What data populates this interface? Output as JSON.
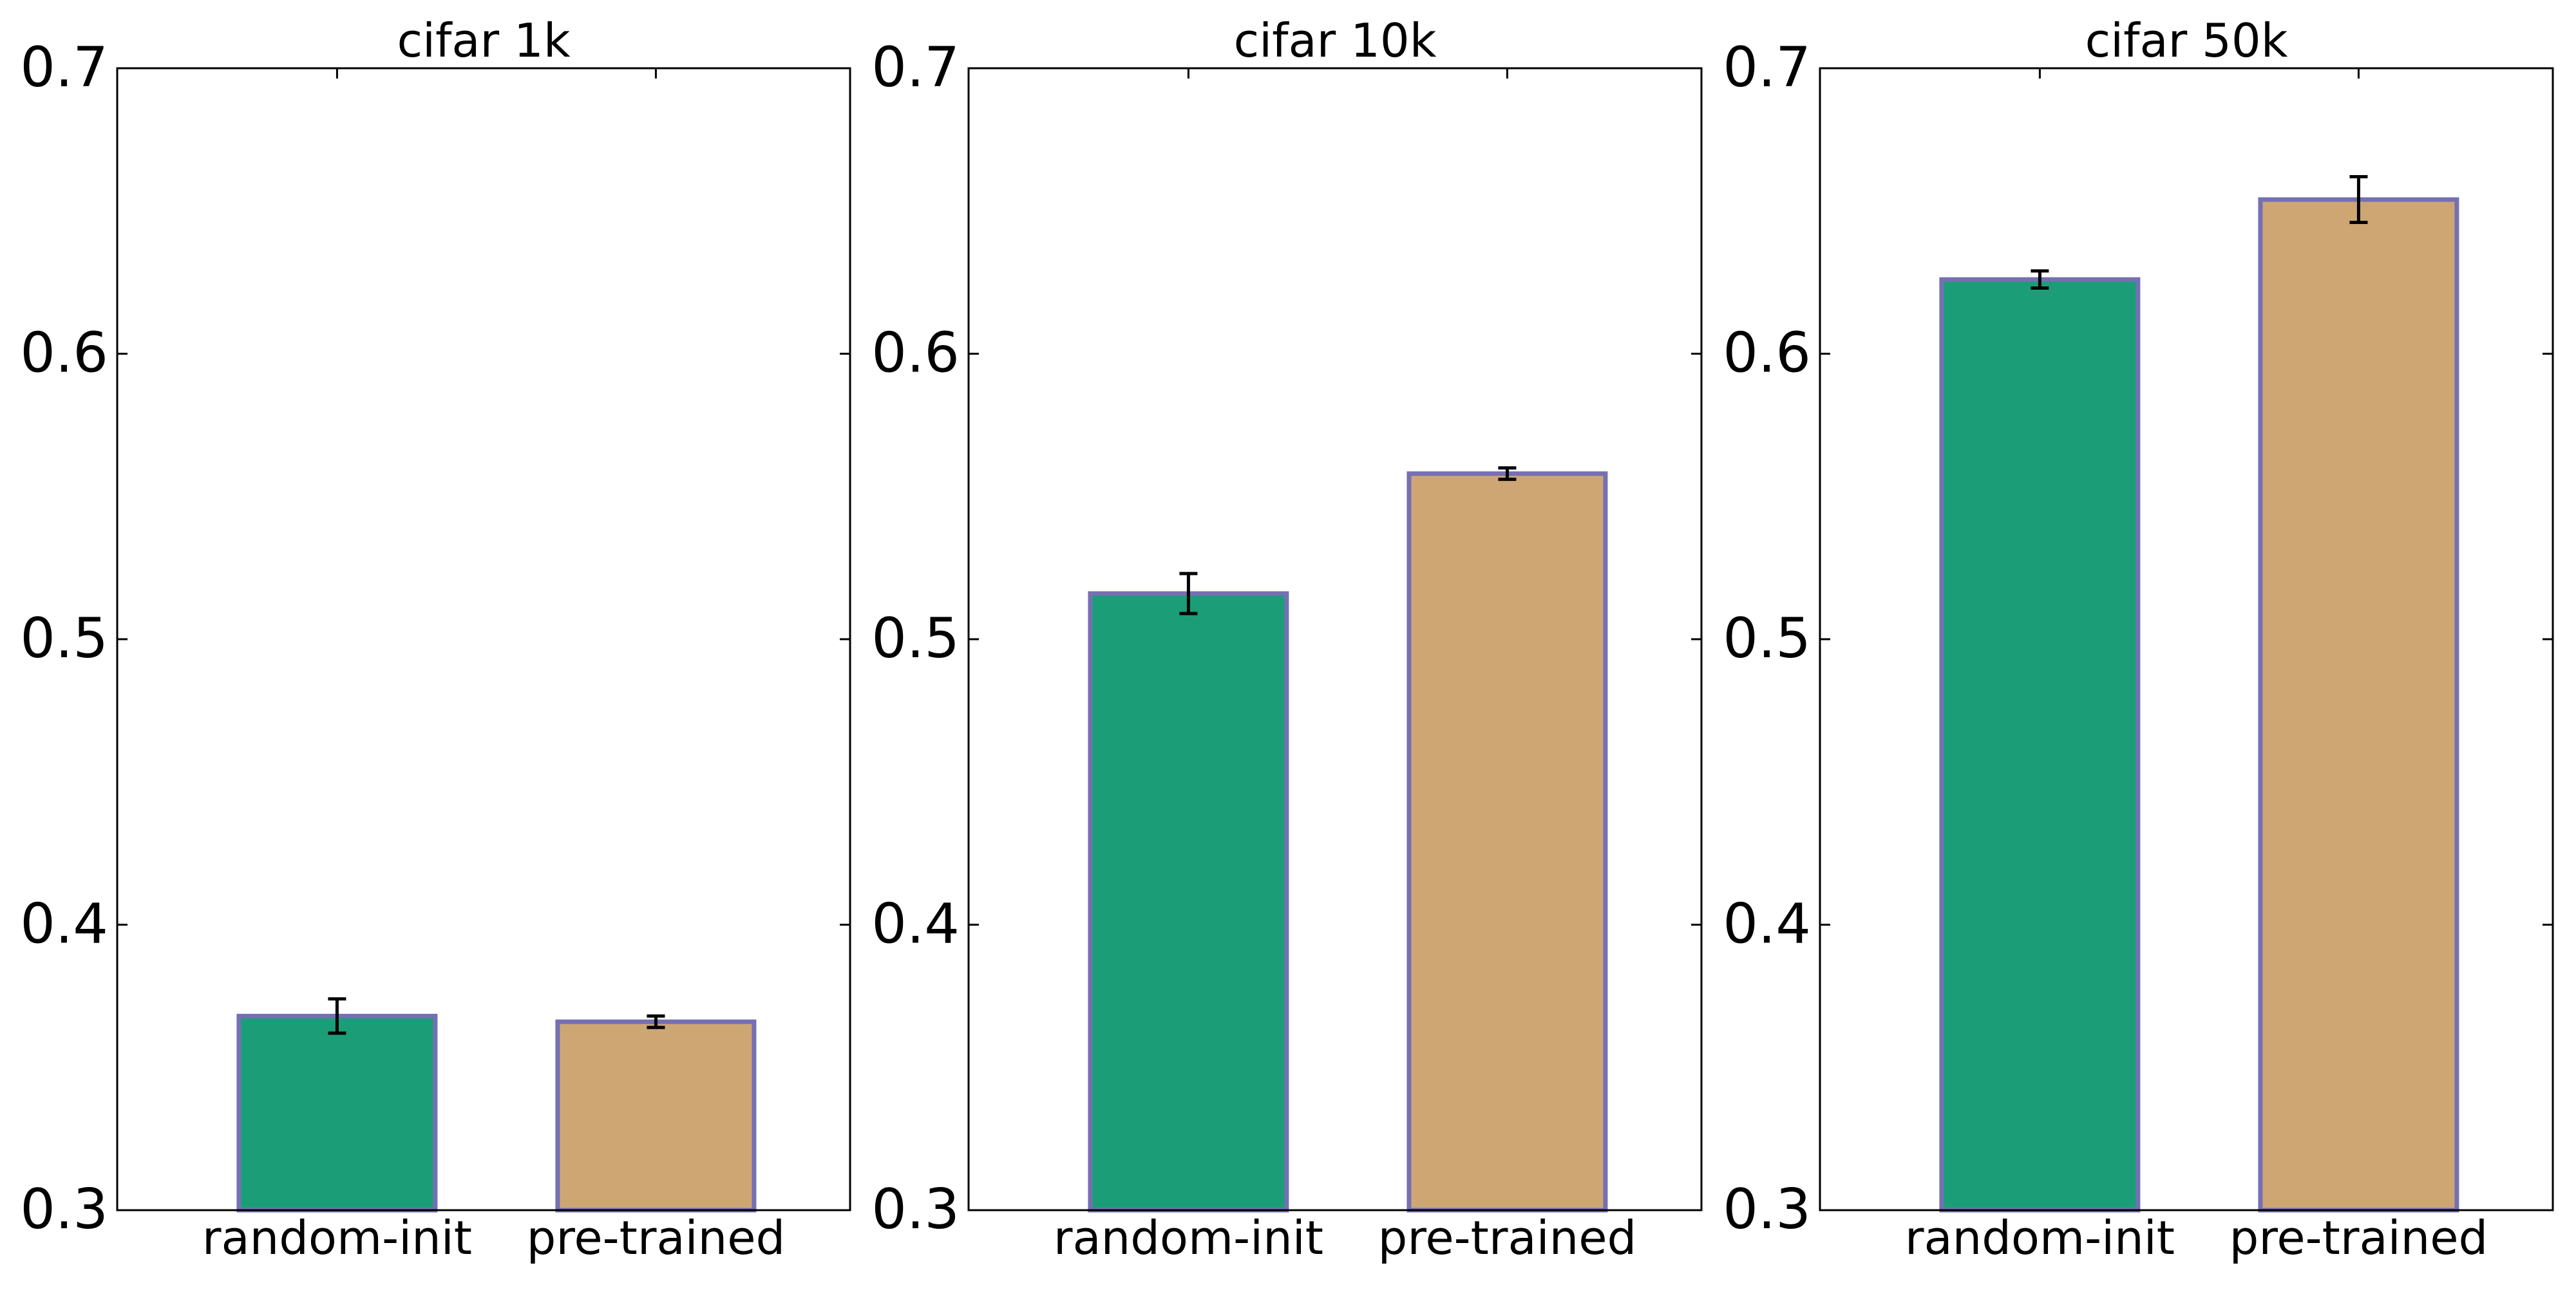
{
  "chart_data": [
    {
      "type": "bar",
      "title": "cifar 1k",
      "categories": [
        "random-init",
        "pre-trained"
      ],
      "values": [
        0.368,
        0.366
      ],
      "errors": [
        0.006,
        0.002
      ],
      "xlabel": "",
      "ylabel": "",
      "ylim": [
        0.3,
        0.7
      ],
      "yticks": [
        0.3,
        0.4,
        0.5,
        0.6,
        0.7
      ],
      "ytick_labels": [
        "0.3",
        "0.4",
        "0.5",
        "0.6",
        "0.7"
      ],
      "grid": false
    },
    {
      "type": "bar",
      "title": "cifar 10k",
      "categories": [
        "random-init",
        "pre-trained"
      ],
      "values": [
        0.516,
        0.558
      ],
      "errors": [
        0.007,
        0.002
      ],
      "xlabel": "",
      "ylabel": "",
      "ylim": [
        0.3,
        0.7
      ],
      "yticks": [
        0.3,
        0.4,
        0.5,
        0.6,
        0.7
      ],
      "ytick_labels": [
        "0.3",
        "0.4",
        "0.5",
        "0.6",
        "0.7"
      ],
      "grid": false
    },
    {
      "type": "bar",
      "title": "cifar 50k",
      "categories": [
        "random-init",
        "pre-trained"
      ],
      "values": [
        0.626,
        0.654
      ],
      "errors": [
        0.003,
        0.008
      ],
      "xlabel": "",
      "ylabel": "",
      "ylim": [
        0.3,
        0.7
      ],
      "yticks": [
        0.3,
        0.4,
        0.5,
        0.6,
        0.7
      ],
      "ytick_labels": [
        "0.3",
        "0.4",
        "0.5",
        "0.6",
        "0.7"
      ],
      "grid": false
    }
  ],
  "colors": {
    "bar_fills": [
      "#1b9e77",
      "#cda674"
    ],
    "bar_edge": "#7570b3",
    "error_bar": "#000000",
    "frame": "#000000"
  }
}
